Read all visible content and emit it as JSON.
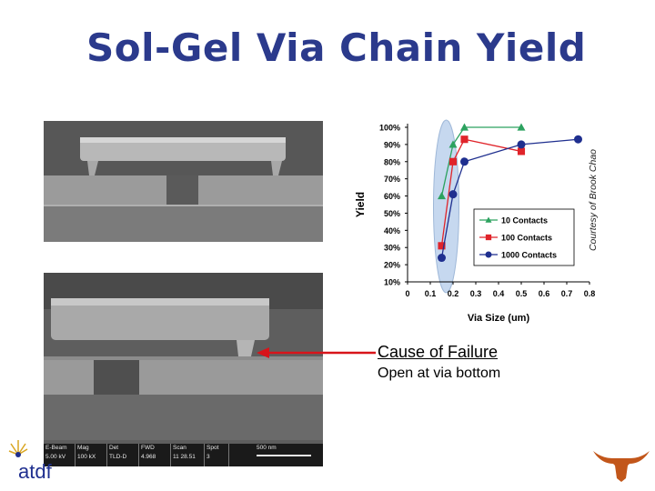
{
  "slide": {
    "title": "Sol-Gel Via Chain Yield",
    "credit": "Courtesy of Brook Chao",
    "cause_label": "Cause of Failure",
    "cause_detail": "Open at via bottom",
    "logo_left_text": "atdf"
  },
  "sem_bar": {
    "cells": [
      {
        "top": "E-Beam",
        "bottom": "5.00 kV"
      },
      {
        "top": "Mag",
        "bottom": "100 kX"
      },
      {
        "top": "Det",
        "bottom": "TLD-D"
      },
      {
        "top": "FWD",
        "bottom": "4.968"
      },
      {
        "top": "Scan",
        "bottom": "11 28.51"
      },
      {
        "top": "Spot",
        "bottom": "3"
      },
      {
        "top": "500 nm",
        "bottom": ""
      }
    ]
  },
  "colors": {
    "title": "#2b3a8c",
    "series_10": "#2ca25f",
    "series_100": "#e0242a",
    "series_1000": "#1f2f8f",
    "highlight": "#c6d8ef",
    "arrow": "#d8141a",
    "longhorn": "#c2561a"
  },
  "chart_data": {
    "type": "line",
    "title": "",
    "xlabel": "Via Size (um)",
    "ylabel": "Yield",
    "xlim": [
      0,
      0.8
    ],
    "ylim": [
      0.1,
      1.0
    ],
    "x_ticks": [
      "0",
      "0.1",
      "0.2",
      "0.3",
      "0.4",
      "0.5",
      "0.6",
      "0.7",
      "0.8"
    ],
    "y_ticks": [
      "10%",
      "20%",
      "30%",
      "40%",
      "50%",
      "60%",
      "70%",
      "80%",
      "90%",
      "100%"
    ],
    "legend_position": "bottom-right",
    "series": [
      {
        "name": "10 Contacts",
        "marker": "triangle",
        "x": [
          0.15,
          0.2,
          0.25,
          0.5
        ],
        "y": [
          0.6,
          0.9,
          1.0,
          1.0
        ]
      },
      {
        "name": "100 Contacts",
        "marker": "square",
        "x": [
          0.15,
          0.2,
          0.25,
          0.5
        ],
        "y": [
          0.31,
          0.8,
          0.93,
          0.86
        ]
      },
      {
        "name": "1000 Contacts",
        "marker": "circle",
        "x": [
          0.15,
          0.2,
          0.25,
          0.5,
          0.75
        ],
        "y": [
          0.24,
          0.61,
          0.8,
          0.9,
          0.93
        ]
      }
    ]
  }
}
